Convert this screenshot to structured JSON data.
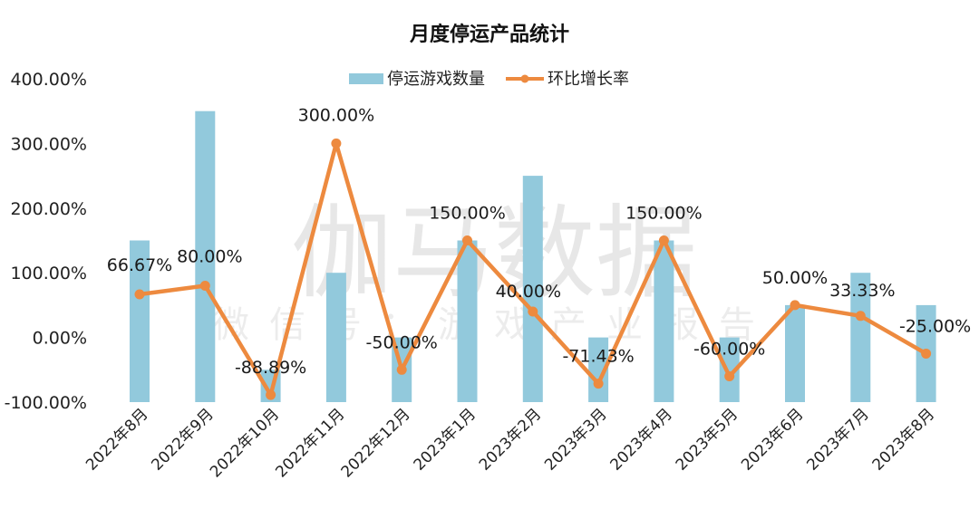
{
  "chart_data": {
    "type": "bar+line",
    "title": "月度停运产品统计",
    "categories": [
      "2022年8月",
      "2022年9月",
      "2022年10月",
      "2022年11月",
      "2022年12月",
      "2023年1月",
      "2023年2月",
      "2023年3月",
      "2023年4月",
      "2023年5月",
      "2023年6月",
      "2023年7月",
      "2023年8月"
    ],
    "series": [
      {
        "name": "停运游戏数量",
        "type": "bar",
        "axis": "secondary (hidden)",
        "color": "#92C9DC",
        "values": [
          5,
          9,
          1,
          4,
          2,
          5,
          7,
          2,
          5,
          2,
          3,
          4,
          3
        ]
      },
      {
        "name": "环比增长率",
        "type": "line",
        "axis": "primary",
        "color": "#ED8A3F",
        "values": [
          66.67,
          80.0,
          -88.89,
          300.0,
          -50.0,
          150.0,
          40.0,
          -71.43,
          150.0,
          -60.0,
          50.0,
          33.33,
          -25.0
        ],
        "labels": [
          "66.67%",
          "80.00%",
          "-88.89%",
          "300.00%",
          "-50.00%",
          "150.00%",
          "40.00%",
          "-71.43%",
          "150.00%",
          "-60.00%",
          "50.00%",
          "33.33%",
          "-25.00%"
        ]
      }
    ],
    "y_axis": {
      "ticks": [
        "400.00%",
        "300.00%",
        "200.00%",
        "100.00%",
        "0.00%",
        "-100.00%"
      ],
      "tick_values": [
        400,
        300,
        200,
        100,
        0,
        -100
      ],
      "ylim": [
        -100,
        400
      ]
    },
    "y2_axis": {
      "visible": false,
      "ylim": [
        0,
        10
      ]
    },
    "xlabel": "",
    "ylabel": "",
    "grid": false,
    "legend": {
      "position": "top",
      "entries": [
        "停运游戏数量",
        "环比增长率"
      ]
    },
    "x_label_rotation": -45
  },
  "watermark": {
    "main": "伽马数据",
    "sub": "微信号：游戏产业报告"
  }
}
